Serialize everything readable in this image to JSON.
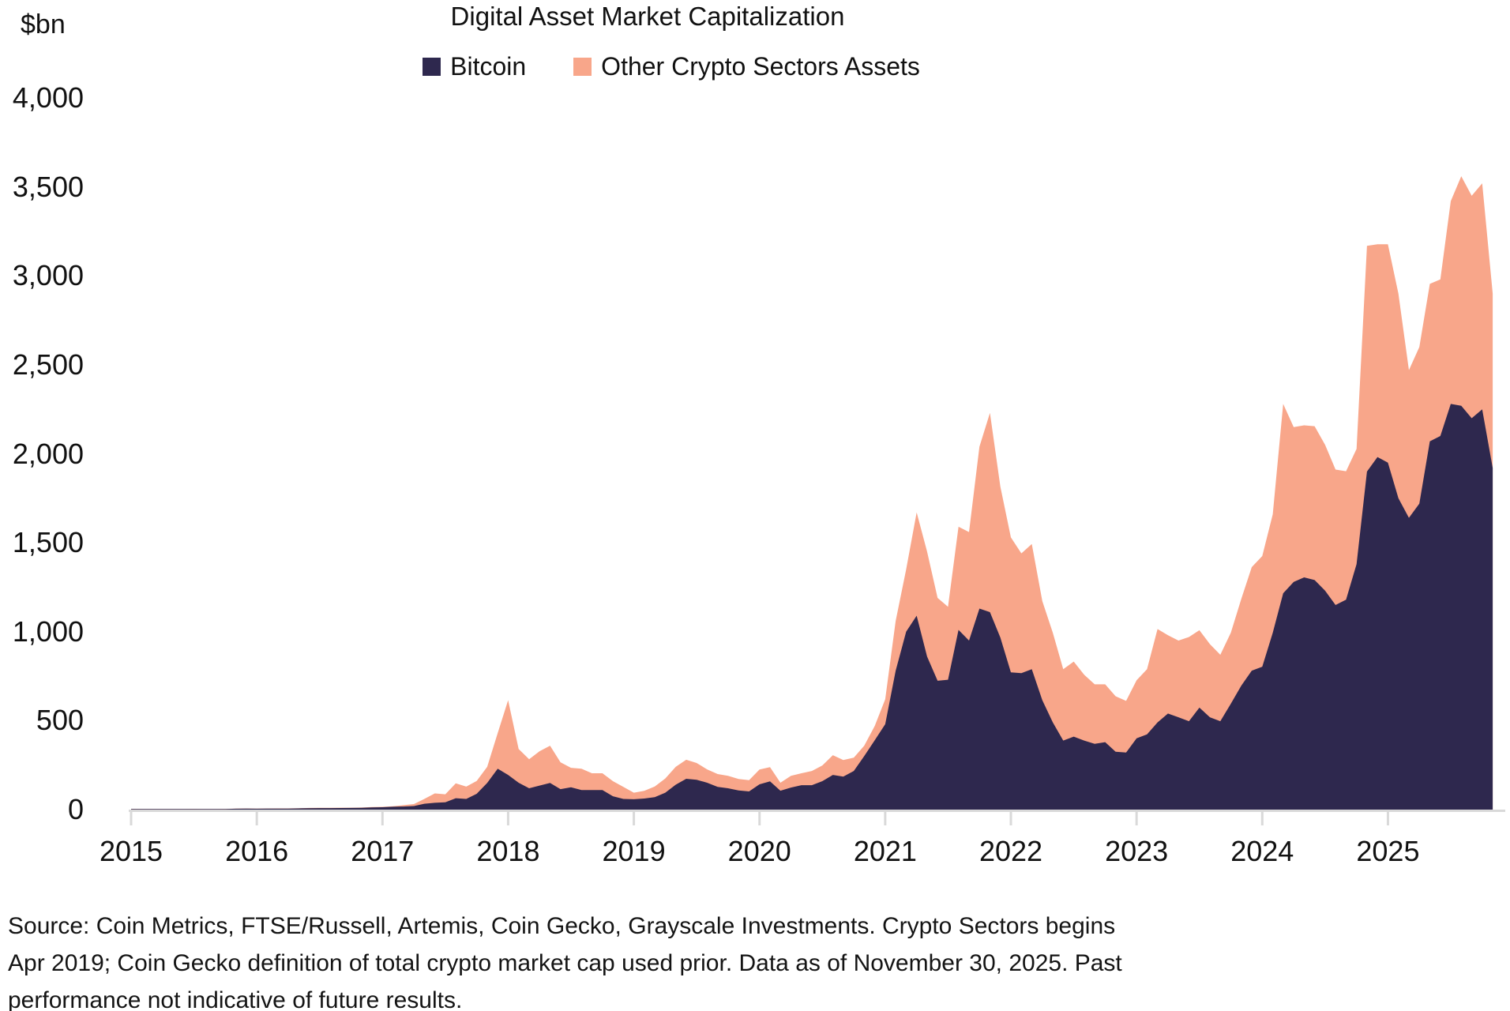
{
  "title": "Digital Asset Market Capitalization",
  "y_axis": {
    "unit_label": "$bn",
    "tick_step": 500,
    "tick_labels": [
      "0",
      "500",
      "1,000",
      "1,500",
      "2,000",
      "2,500",
      "3,000",
      "3,500",
      "4,000"
    ]
  },
  "source": {
    "lines": [
      "Source: Coin Metrics, FTSE/Russell, Artemis, Coin Gecko, Grayscale Investments. Crypto Sectors begins",
      "Apr 2019; Coin Gecko definition of total crypto market cap used prior. Data as of November 30, 2025. Past",
      "performance not indicative of future results."
    ]
  },
  "colors": {
    "bitcoin": "#2E284E",
    "other": "#F8A68A",
    "axis": "#D9D9D9",
    "text": "#111111"
  },
  "chart_data": {
    "type": "area",
    "stacked": true,
    "title": "Digital Asset Market Capitalization",
    "ylabel": "$bn",
    "ylim": [
      0,
      4000
    ],
    "grid": false,
    "legend_position": "top",
    "frequency": "monthly",
    "x_start": "2015-01",
    "x_end": "2025-11",
    "categories": [
      "2015",
      "2016",
      "2017",
      "2018",
      "2019",
      "2020",
      "2021",
      "2022",
      "2023",
      "2024",
      "2025"
    ],
    "series": [
      {
        "name": "Bitcoin",
        "color": "#2E284E",
        "values": [
          3.2,
          3.0,
          3.0,
          2.9,
          2.9,
          3.2,
          3.5,
          2.9,
          3.0,
          3.5,
          4.7,
          5.2,
          4.9,
          5.5,
          5.7,
          5.9,
          6.5,
          8.2,
          8.6,
          8.4,
          8.8,
          9.2,
          9.8,
          12.5,
          13.2,
          15.8,
          17.5,
          20,
          33,
          38,
          41,
          64,
          60,
          89,
          150,
          230,
          195,
          151,
          120,
          135,
          150,
          115,
          125,
          110,
          110,
          110,
          75,
          60,
          58,
          62,
          70,
          95,
          140,
          173,
          168,
          151,
          128,
          120,
          108,
          102,
          142,
          159,
          106,
          124,
          137,
          137,
          160,
          195,
          185,
          217,
          301,
          390,
          480,
          780,
          1000,
          1090,
          860,
          724,
          730,
          1010,
          950,
          1130,
          1110,
          967,
          771,
          767,
          789,
          615,
          490,
          388,
          410,
          388,
          370,
          379,
          325,
          321,
          401,
          423,
          490,
          540,
          519,
          497,
          573,
          519,
          497,
          595,
          697,
          781,
          803,
          994,
          1216,
          1280,
          1305,
          1290,
          1230,
          1150,
          1180,
          1380,
          1900,
          1982,
          1950,
          1750,
          1640,
          1720,
          2070,
          2100,
          2280,
          2270,
          2200,
          2250,
          1920
        ]
      },
      {
        "name": "Other Crypto Sectors Assets",
        "color": "#F8A68A",
        "values": [
          0.6,
          0.5,
          0.5,
          0.4,
          0.4,
          0.4,
          0.4,
          0.4,
          0.4,
          0.5,
          0.7,
          0.8,
          0.7,
          0.8,
          0.8,
          0.9,
          1.0,
          1.3,
          1.7,
          1.6,
          1.7,
          1.6,
          1.7,
          2.0,
          2.3,
          2.7,
          7.5,
          11,
          27,
          53,
          45,
          84,
          69,
          72,
          90,
          200,
          420,
          190,
          163,
          193,
          209,
          151,
          110,
          120,
          94,
          94,
          85,
          68,
          37,
          43,
          60,
          80,
          100,
          107,
          94,
          75,
          72,
          70,
          64,
          63,
          83,
          80,
          45,
          66,
          67,
          80,
          88,
          111,
          94,
          75,
          58,
          80,
          140,
          280,
          350,
          580,
          590,
          466,
          410,
          580,
          610,
          910,
          1120,
          848,
          759,
          673,
          704,
          557,
          504,
          401,
          422,
          370,
          334,
          325,
          312,
          290,
          326,
          366,
          525,
          440,
          431,
          473,
          435,
          411,
          373,
          399,
          488,
          582,
          622,
          666,
          1064,
          870,
          855,
          865,
          820,
          761,
          722,
          647,
          1269,
          1196,
          1228,
          1150,
          830,
          880,
          885,
          880,
          1140,
          1290,
          1250,
          1270,
          980
        ]
      }
    ]
  }
}
